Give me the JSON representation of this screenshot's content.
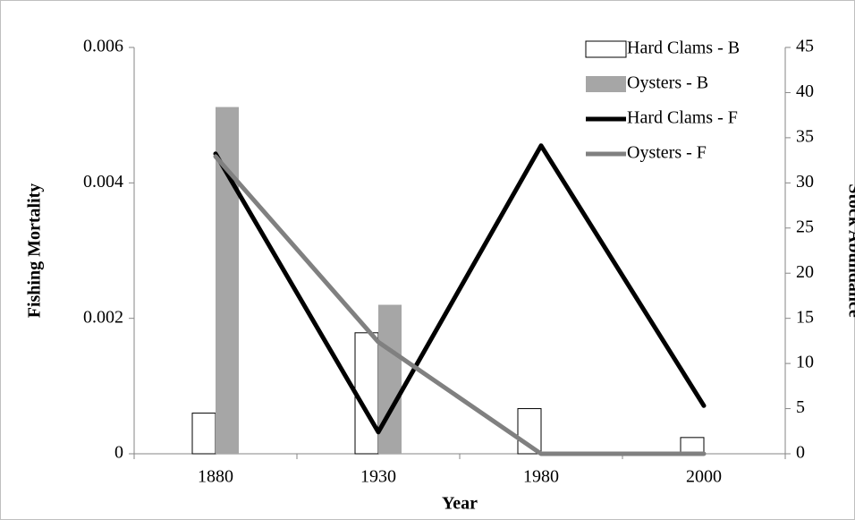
{
  "chart_data": {
    "type": "combo",
    "x_label": "Year",
    "y_label": "Fishing Mortality",
    "y2_label": "Stock Abundance",
    "categories": [
      "1880",
      "1930",
      "1980",
      "2000"
    ],
    "series": [
      {
        "name": "Hard Clams - B",
        "type": "bar",
        "axis": "y2",
        "color": "#ffffff",
        "stroke": "#000000",
        "values": [
          4.5,
          13.4,
          5.0,
          1.8
        ]
      },
      {
        "name": "Oysters - B",
        "type": "bar",
        "axis": "y2",
        "color": "#a6a6a6",
        "values": [
          38.4,
          16.5,
          null,
          null
        ]
      },
      {
        "name": "Hard Clams - F",
        "type": "line",
        "axis": "y",
        "color": "#000000",
        "values": [
          0.00443,
          0.00032,
          0.00455,
          0.00071
        ]
      },
      {
        "name": "Oysters - F",
        "type": "line",
        "axis": "y",
        "color": "#808080",
        "values": [
          0.00439,
          0.00165,
          0,
          0
        ]
      }
    ],
    "ylim": [
      0,
      0.006
    ],
    "yticks": [
      0,
      0.002,
      0.004,
      0.006
    ],
    "y2lim": [
      0,
      45
    ],
    "y2ticks": [
      0,
      5,
      10,
      15,
      20,
      25,
      30,
      35,
      40,
      45
    ],
    "legend": "top-right"
  }
}
